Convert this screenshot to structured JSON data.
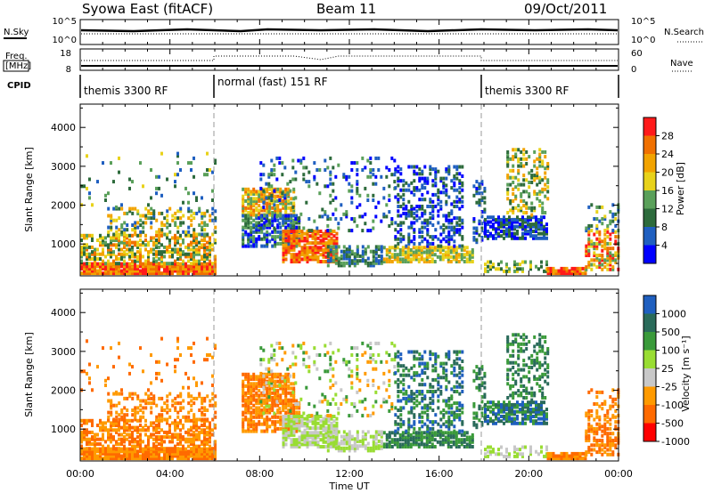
{
  "header": {
    "title": "Syowa East (fitACF)",
    "beam": "Beam 11",
    "date": "09/Oct/2011"
  },
  "nsky_panel": {
    "left_label": "N.Sky",
    "right_label": "N.Search",
    "left_ticks": [
      "10^5",
      "10^0"
    ],
    "right_ticks": [
      "10^5",
      "10^0"
    ]
  },
  "freq_panel": {
    "left_label": [
      "Freq.",
      "[MHz]"
    ],
    "right_label": "Nave",
    "left_ticks": [
      "18",
      "8"
    ],
    "right_ticks": [
      "60",
      "0"
    ]
  },
  "cpid": {
    "label": "CPID",
    "modes": [
      {
        "label": "themis 3300 RF",
        "start_hour": 0
      },
      {
        "label": "normal (fast) 151 RF",
        "start_hour": 6
      },
      {
        "label": "themis 3300 RF",
        "start_hour": 18
      }
    ]
  },
  "x_axis": {
    "label": "Time UT",
    "ticks": [
      "00:00",
      "04:00",
      "08:00",
      "12:00",
      "16:00",
      "20:00",
      "00:00"
    ]
  },
  "colors": {
    "power": [
      "#0000ff",
      "#1f5fc0",
      "#2d6b3c",
      "#5aa05a",
      "#e8d21a",
      "#f2a300",
      "#f07000",
      "#ff1a1a"
    ],
    "velocity": [
      "#ff0000",
      "#ff6a00",
      "#ff9a00",
      "#c8c8c8",
      "#99dd33",
      "#3a9a3a",
      "#2a6b5a",
      "#1f5fbf"
    ]
  },
  "chart_data": [
    {
      "type": "heatmap",
      "title": "Power",
      "xlabel": "Time UT",
      "ylabel": "Slant Range [km]",
      "x_range_hours": [
        0,
        24
      ],
      "ylim": [
        180,
        4600
      ],
      "yticks": [
        "1000",
        "2000",
        "3000",
        "4000"
      ],
      "colorbar": {
        "label": "Power [dB]",
        "range": [
          0,
          32
        ],
        "ticks": [
          "4",
          "8",
          "12",
          "16",
          "20",
          "24",
          "28"
        ]
      }
    },
    {
      "type": "heatmap",
      "title": "Velocity",
      "xlabel": "Time UT",
      "ylabel": "Slant Range [km]",
      "x_range_hours": [
        0,
        24
      ],
      "ylim": [
        180,
        4600
      ],
      "yticks": [
        "1000",
        "2000",
        "3000",
        "4000"
      ],
      "colorbar": {
        "label": "Velocity [m s⁻¹]",
        "ticks": [
          "1000",
          "500",
          "100",
          "25",
          "-25",
          "-100",
          "-500",
          "-1000"
        ]
      }
    }
  ]
}
